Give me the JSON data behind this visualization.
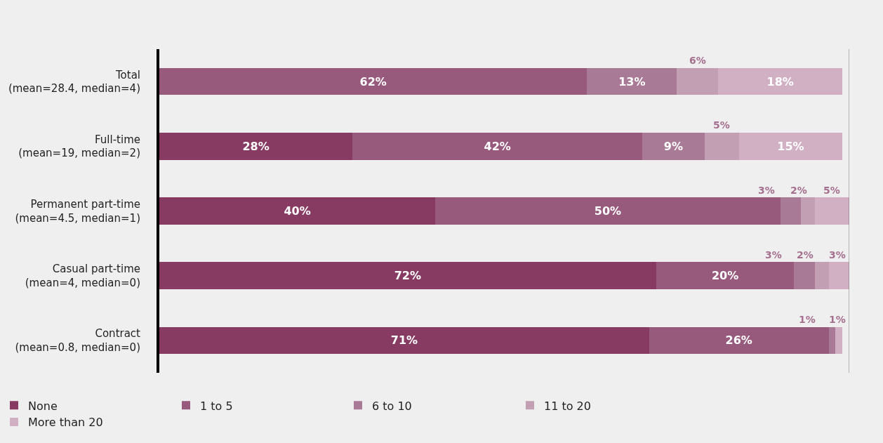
{
  "chart_data": {
    "type": "bar",
    "orientation": "horizontal",
    "stacked": true,
    "legend": "bottom",
    "grid": false,
    "categories": [
      "Total\n(mean=28.4, median=4)",
      "Full-time\n(mean=19, median=2)",
      "Permanent part-time\n(mean=4.5, median=1)",
      "Casual part-time\n(mean=4, median=0)",
      "Contract\n(mean=0.8, median=0)"
    ],
    "series": [
      {
        "name": "None",
        "color": "#873b63",
        "values": [
          null,
          28,
          40,
          72,
          71
        ],
        "value_labels": [
          null,
          "28%",
          "40%",
          "72%",
          "71%"
        ]
      },
      {
        "name": "1 to 5",
        "color": "#975a7c",
        "values": [
          62,
          42,
          50,
          20,
          26
        ],
        "value_labels": [
          "62%",
          "42%",
          "50%",
          "20%",
          "26%"
        ]
      },
      {
        "name": "6 to 10",
        "color": "#a97a96",
        "values": [
          13,
          9,
          3,
          3,
          1
        ],
        "value_labels": [
          "13%",
          "9%",
          "3%",
          "3%",
          "1%"
        ]
      },
      {
        "name": "11 to 20",
        "color": "#c39fb4",
        "values": [
          6,
          5,
          2,
          2,
          null
        ],
        "value_labels": [
          "6%",
          "5%",
          "2%",
          "2%",
          null
        ]
      },
      {
        "name": "More than 20",
        "color": "#d1b0c4",
        "values": [
          18,
          15,
          5,
          3,
          1
        ],
        "value_labels": [
          "18%",
          "15%",
          "5%",
          "3%",
          "1%"
        ]
      }
    ]
  }
}
